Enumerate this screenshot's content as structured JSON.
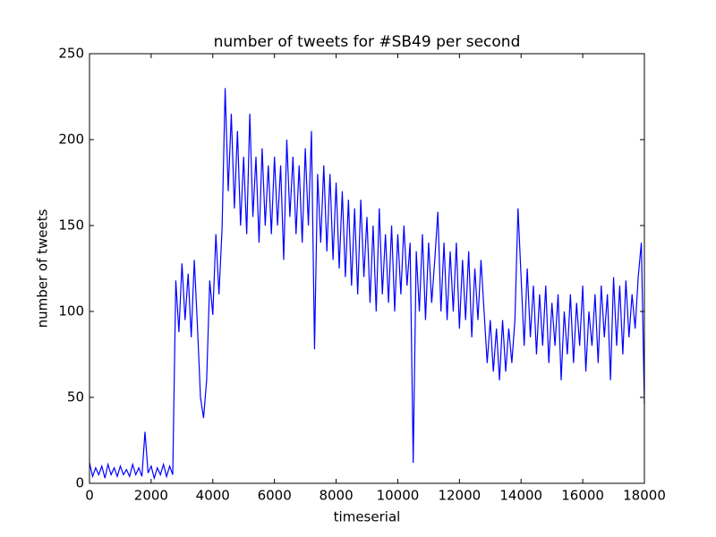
{
  "chart_data": {
    "type": "line",
    "title": "number of tweets for #SB49 per second",
    "x_label": "timeserial",
    "y_label": "number of tweets",
    "color": "#0000ff",
    "x": [
      0,
      100,
      200,
      300,
      400,
      500,
      600,
      700,
      800,
      900,
      1000,
      1100,
      1200,
      1300,
      1400,
      1500,
      1600,
      1700,
      1800,
      1900,
      2000,
      2100,
      2200,
      2300,
      2400,
      2500,
      2600,
      2700,
      2800,
      2900,
      3000,
      3100,
      3200,
      3300,
      3400,
      3500,
      3600,
      3700,
      3800,
      3900,
      4000,
      4100,
      4200,
      4300,
      4400,
      4500,
      4600,
      4700,
      4800,
      4900,
      5000,
      5100,
      5200,
      5300,
      5400,
      5500,
      5600,
      5700,
      5800,
      5900,
      6000,
      6100,
      6200,
      6300,
      6400,
      6500,
      6600,
      6700,
      6800,
      6900,
      7000,
      7100,
      7200,
      7300,
      7400,
      7500,
      7600,
      7700,
      7800,
      7900,
      8000,
      8100,
      8200,
      8300,
      8400,
      8500,
      8600,
      8700,
      8800,
      8900,
      9000,
      9100,
      9200,
      9300,
      9400,
      9500,
      9600,
      9700,
      9800,
      9900,
      10000,
      10100,
      10200,
      10300,
      10400,
      10500,
      10600,
      10700,
      10800,
      10900,
      11000,
      11100,
      11200,
      11300,
      11400,
      11500,
      11600,
      11700,
      11800,
      11900,
      12000,
      12100,
      12200,
      12300,
      12400,
      12500,
      12600,
      12700,
      12800,
      12900,
      13000,
      13100,
      13200,
      13300,
      13400,
      13500,
      13600,
      13700,
      13800,
      13900,
      14000,
      14100,
      14200,
      14300,
      14400,
      14500,
      14600,
      14700,
      14800,
      14900,
      15000,
      15100,
      15200,
      15300,
      15400,
      15500,
      15600,
      15700,
      15800,
      15900,
      16000,
      16100,
      16200,
      16300,
      16400,
      16500,
      16600,
      16700,
      16800,
      16900,
      17000,
      17100,
      17200,
      17300,
      17400,
      17500,
      17600,
      17700,
      17800,
      17900,
      18000
    ],
    "values": [
      12,
      4,
      9,
      5,
      10,
      3,
      11,
      5,
      9,
      4,
      10,
      5,
      8,
      4,
      11,
      5,
      9,
      4,
      30,
      6,
      10,
      3,
      9,
      5,
      11,
      4,
      10,
      5,
      118,
      88,
      128,
      95,
      122,
      85,
      130,
      92,
      50,
      38,
      60,
      118,
      98,
      145,
      110,
      148,
      230,
      170,
      215,
      160,
      205,
      150,
      190,
      145,
      215,
      155,
      190,
      140,
      195,
      150,
      185,
      145,
      190,
      150,
      185,
      130,
      200,
      155,
      190,
      145,
      185,
      140,
      195,
      150,
      205,
      78,
      180,
      140,
      185,
      135,
      180,
      130,
      175,
      125,
      170,
      120,
      165,
      115,
      160,
      110,
      165,
      120,
      155,
      105,
      150,
      100,
      160,
      110,
      145,
      105,
      150,
      100,
      145,
      110,
      150,
      115,
      140,
      12,
      135,
      100,
      145,
      95,
      140,
      105,
      130,
      158,
      100,
      140,
      95,
      135,
      100,
      140,
      90,
      130,
      95,
      135,
      85,
      125,
      95,
      130,
      100,
      70,
      95,
      65,
      90,
      60,
      95,
      65,
      90,
      70,
      95,
      160,
      120,
      80,
      125,
      85,
      115,
      75,
      110,
      80,
      115,
      70,
      105,
      80,
      110,
      60,
      100,
      75,
      110,
      70,
      105,
      80,
      115,
      65,
      100,
      80,
      110,
      70,
      115,
      85,
      110,
      60,
      120,
      80,
      115,
      75,
      118,
      85,
      110,
      90,
      120,
      140,
      46
    ],
    "xlim": [
      0,
      18000
    ],
    "ylim": [
      0,
      250
    ],
    "xticks": [
      0,
      2000,
      4000,
      6000,
      8000,
      10000,
      12000,
      14000,
      16000,
      18000
    ],
    "yticks": [
      0,
      50,
      100,
      150,
      200,
      250
    ]
  }
}
